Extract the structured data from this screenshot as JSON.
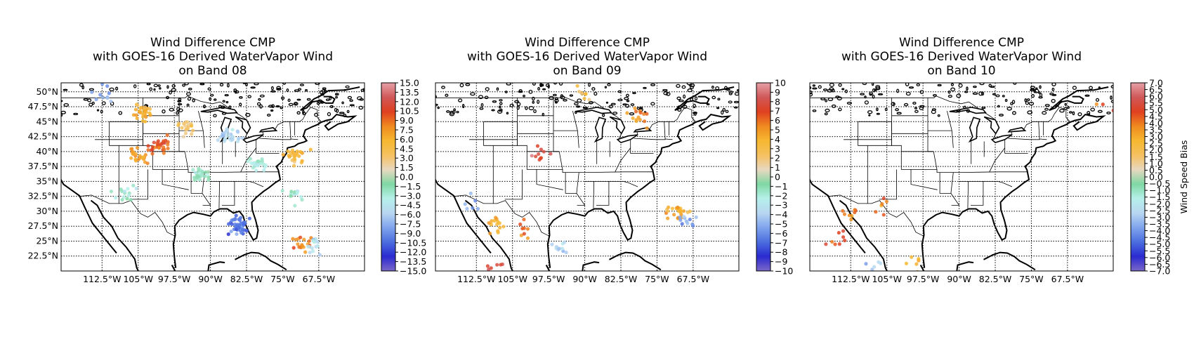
{
  "figure": {
    "colorbar_label": "Wind Speed Bias",
    "panels": [
      {
        "title_lines": [
          "Wind Difference CMP",
          "with GOES-16 Derived WaterVapor Wind",
          "on Band 08"
        ],
        "lat_ticks": [
          "50°N",
          "47.5°N",
          "45°N",
          "42.5°N",
          "40°N",
          "37.5°N",
          "35°N",
          "32.5°N",
          "30°N",
          "27.5°N",
          "25°N",
          "22.5°N"
        ],
        "lon_ticks": [
          "112.5°W",
          "105°W",
          "97.5°W",
          "90°W",
          "82.5°W",
          "75°W",
          "67.5°W"
        ],
        "colorbar_ticks": [
          "15.0",
          "13.5",
          "12.0",
          "10.5",
          "9.0",
          "7.5",
          "6.0",
          "4.5",
          "3.0",
          "1.5",
          "0.0",
          "−1.5",
          "−3.0",
          "−4.5",
          "−6.0",
          "−7.5",
          "−9.0",
          "−10.5",
          "−12.0",
          "−13.5",
          "−15.0"
        ]
      },
      {
        "title_lines": [
          "Wind Difference CMP",
          "with GOES-16 Derived WaterVapor Wind",
          "on Band 09"
        ],
        "lat_ticks": [],
        "lon_ticks": [
          "112.5°W",
          "105°W",
          "97.5°W",
          "90°W",
          "82.5°W",
          "75°W",
          "67.5°W"
        ],
        "colorbar_ticks": [
          "10",
          "9",
          "8",
          "7",
          "6",
          "5",
          "4",
          "3",
          "2",
          "1",
          "0",
          "−1",
          "−2",
          "−3",
          "−4",
          "−5",
          "−6",
          "−7",
          "−8",
          "−9",
          "−10"
        ]
      },
      {
        "title_lines": [
          "Wind Difference CMP",
          "with GOES-16 Derived WaterVapor Wind",
          "on Band 10"
        ],
        "lat_ticks": [],
        "lon_ticks": [
          "112.5°W",
          "105°W",
          "97.5°W",
          "90°W",
          "82.5°W",
          "75°W",
          "67.5°W"
        ],
        "colorbar_ticks": [
          "7.0",
          "6.5",
          "6.0",
          "5.5",
          "5.0",
          "4.5",
          "4.0",
          "3.5",
          "3.0",
          "2.5",
          "2.0",
          "1.5",
          "1.0",
          "0.5",
          "0.0",
          "−0.5",
          "−1.0",
          "−1.5",
          "−2.0",
          "−2.5",
          "−3.0",
          "−3.5",
          "−4.0",
          "−4.5",
          "−5.0",
          "−5.5",
          "−6.0",
          "−6.5",
          "−7.0"
        ]
      }
    ],
    "colorbar_colors": [
      "#7b68c8",
      "#2a2ad0",
      "#4b6ee0",
      "#7fa4ec",
      "#b8d6f2",
      "#b6f0ea",
      "#7fd8a4",
      "#e8d8c0",
      "#f5c060",
      "#f6b830",
      "#f08a20",
      "#e04020",
      "#d05858",
      "#e6a0a8"
    ]
  },
  "chart_data": [
    {
      "type": "scatter",
      "title": "Wind Difference CMP with GOES-16 Derived WaterVapor Wind on Band 08",
      "xlim": [
        -121,
        -58
      ],
      "ylim": [
        20,
        51.5
      ],
      "clim": [
        -15,
        15
      ],
      "clusters": [
        {
          "lon": -104,
          "lat": 46.5,
          "value": 6,
          "n": 30
        },
        {
          "lon": -100.5,
          "lat": 41,
          "value": 10,
          "n": 30
        },
        {
          "lon": -105.5,
          "lat": 39.5,
          "value": 7,
          "n": 22
        },
        {
          "lon": -84,
          "lat": 27.5,
          "value": -10,
          "n": 50
        },
        {
          "lon": -72,
          "lat": 39.5,
          "value": 5,
          "n": 26
        },
        {
          "lon": -86,
          "lat": 43,
          "value": -6,
          "n": 30
        },
        {
          "lon": -71,
          "lat": 24.5,
          "value": 8,
          "n": 20
        },
        {
          "lon": -68,
          "lat": 24,
          "value": -5,
          "n": 15
        },
        {
          "lon": -80,
          "lat": 38,
          "value": -3,
          "n": 25
        },
        {
          "lon": -92,
          "lat": 36,
          "value": -2,
          "n": 28
        },
        {
          "lon": -108,
          "lat": 33,
          "value": -3,
          "n": 15
        },
        {
          "lon": -112,
          "lat": 49.5,
          "value": -8,
          "n": 10
        },
        {
          "lon": -72.5,
          "lat": 32.5,
          "value": -3,
          "n": 14
        },
        {
          "lon": -95,
          "lat": 44,
          "value": 3,
          "n": 20
        }
      ]
    },
    {
      "type": "scatter",
      "title": "Wind Difference CMP with GOES-16 Derived WaterVapor Wind on Band 09",
      "xlim": [
        -121,
        -58
      ],
      "ylim": [
        20,
        51.5
      ],
      "clim": [
        -10,
        10
      ],
      "clusters": [
        {
          "lon": -70.5,
          "lat": 29.5,
          "value": 4,
          "n": 24
        },
        {
          "lon": -68.5,
          "lat": 28.5,
          "value": -5,
          "n": 12
        },
        {
          "lon": -109,
          "lat": 28,
          "value": 4,
          "n": 14
        },
        {
          "lon": -103,
          "lat": 27,
          "value": 6,
          "n": 8
        },
        {
          "lon": -95,
          "lat": 24,
          "value": -4,
          "n": 10
        },
        {
          "lon": -108,
          "lat": 21,
          "value": 8,
          "n": 6
        },
        {
          "lon": -99,
          "lat": 39.5,
          "value": 8,
          "n": 10
        },
        {
          "lon": -79,
          "lat": 45.5,
          "value": 5,
          "n": 14
        },
        {
          "lon": -90,
          "lat": 50,
          "value": 3,
          "n": 8
        },
        {
          "lon": -114,
          "lat": 31.5,
          "value": -5,
          "n": 6
        }
      ]
    },
    {
      "type": "scatter",
      "title": "Wind Difference CMP with GOES-16 Derived WaterVapor Wind on Band 10",
      "xlim": [
        -121,
        -58
      ],
      "ylim": [
        20,
        51.5
      ],
      "clim": [
        -7,
        7
      ],
      "clusters": [
        {
          "lon": -115,
          "lat": 25.5,
          "value": 5,
          "n": 8
        },
        {
          "lon": -113,
          "lat": 29.5,
          "value": 4,
          "n": 8
        },
        {
          "lon": -106,
          "lat": 31,
          "value": 4,
          "n": 6
        },
        {
          "lon": -99,
          "lat": 21.5,
          "value": 3,
          "n": 6
        },
        {
          "lon": -108,
          "lat": 21.5,
          "value": -3,
          "n": 5
        },
        {
          "lon": -59,
          "lat": 47.5,
          "value": 4,
          "n": 3
        }
      ]
    }
  ]
}
